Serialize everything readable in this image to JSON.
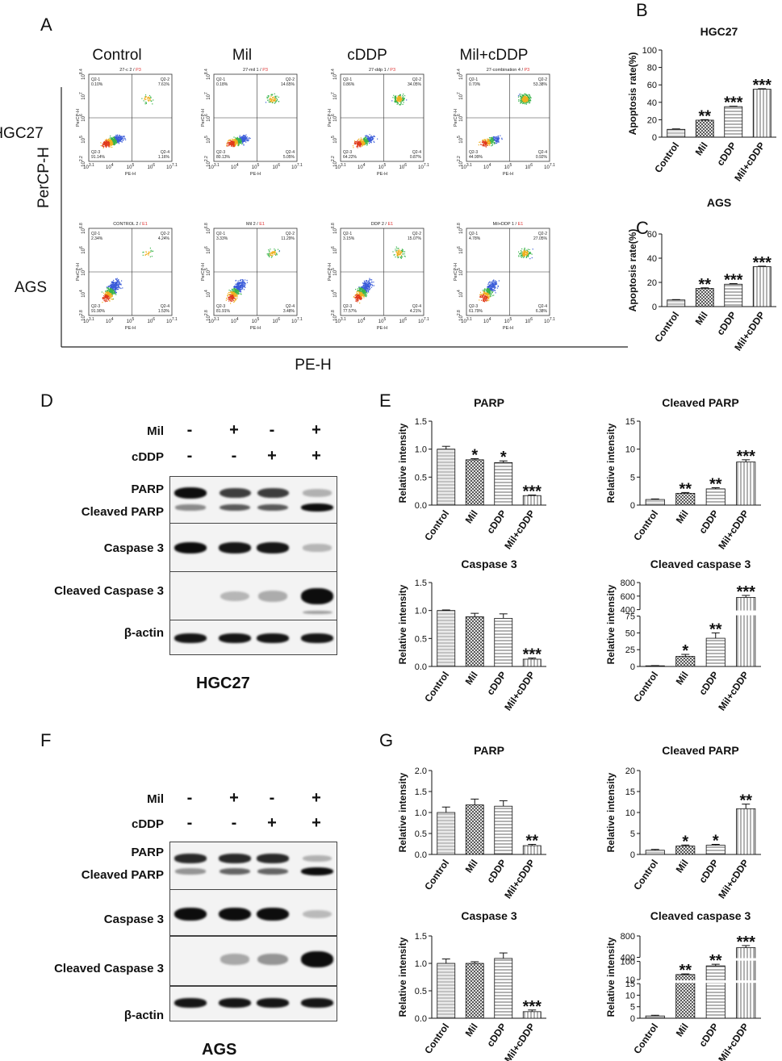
{
  "panels": {
    "A": "A",
    "B": "B",
    "C": "C",
    "D": "D",
    "E": "E",
    "F": "F",
    "G": "G"
  },
  "flow": {
    "conditions": [
      "Control",
      "Mil",
      "cDDP",
      "Mil+cDDP"
    ],
    "rows": [
      "HGC27",
      "AGS"
    ],
    "y_axis": "PerCP-H",
    "x_axis": "PE-H",
    "plot_titles": [
      [
        "27-c 2 / P3",
        "27-mil 1 / P3",
        "27-ddp 1 / P3",
        "27-combination 4 / P3"
      ],
      [
        "CONTROL 2 / E1",
        "Mil 2 / E1",
        "DDP 2 / E1",
        "Mil+DDP 1 / E1"
      ]
    ],
    "quadrants": [
      [
        {
          "q1": "Q2-1\n0.10%",
          "q2": "Q2-2\n7.61%",
          "q3": "Q2-3\n91.14%",
          "q4": "Q2-4\n1.16%"
        },
        {
          "q1": "Q2-1\n0.18%",
          "q2": "Q2-2\n14.65%",
          "q3": "Q2-3\n80.13%",
          "q4": "Q2-4\n5.05%"
        },
        {
          "q1": "Q2-1\n0.86%",
          "q2": "Q2-2\n34.05%",
          "q3": "Q2-3\n64.22%",
          "q4": "Q2-4\n0.87%"
        },
        {
          "q1": "Q2-1\n0.70%",
          "q2": "Q2-2\n53.38%",
          "q3": "Q2-3\n44.99%",
          "q4": "Q2-4\n0.92%"
        }
      ],
      [
        {
          "q1": "Q2-1\n2.34%",
          "q2": "Q2-2\n4.24%",
          "q3": "Q2-3\n91.90%",
          "q4": "Q2-4\n1.53%"
        },
        {
          "q1": "Q2-1\n3.33%",
          "q2": "Q2-2\n11.29%",
          "q3": "Q2-3\n81.91%",
          "q4": "Q2-4\n3.48%"
        },
        {
          "q1": "Q2-1\n3.15%",
          "q2": "Q2-2\n15.07%",
          "q3": "Q2-3\n77.57%",
          "q4": "Q2-4\n4.21%"
        },
        {
          "q1": "Q2-1\n4.78%",
          "q2": "Q2-2\n27.05%",
          "q3": "Q2-3\n61.79%",
          "q4": "Q2-4\n6.38%"
        }
      ]
    ],
    "x_ticks": [
      "10^3.1",
      "10^4",
      "10^5",
      "10^6",
      "10^7.1"
    ],
    "y_ticks_hgc": [
      "10^2.2",
      "10^5",
      "10^6",
      "10^7",
      "10^8.4"
    ],
    "y_ticks_ags": [
      "10^2.8",
      "10^4",
      "10^5",
      "10^6",
      "10^6.8"
    ]
  },
  "blots": [
    {
      "cell": "HGC27",
      "treatments": [
        {
          "name": "Mil",
          "signs": [
            "-",
            "+",
            "-",
            "+"
          ]
        },
        {
          "name": "cDDP",
          "signs": [
            "-",
            "-",
            "+",
            "+"
          ]
        }
      ],
      "bands": [
        "PARP",
        "Cleaved PARP",
        "Caspase 3",
        "Cleaved Caspase 3",
        "β-actin"
      ]
    },
    {
      "cell": "AGS",
      "treatments": [
        {
          "name": "Mil",
          "signs": [
            "-",
            "+",
            "-",
            "+"
          ]
        },
        {
          "name": "cDDP",
          "signs": [
            "-",
            "-",
            "+",
            "+"
          ]
        }
      ],
      "bands": [
        "PARP",
        "Cleaved PARP",
        "Caspase 3",
        "Cleaved Caspase 3",
        "β-actin"
      ]
    }
  ],
  "chart_data": [
    {
      "id": "B",
      "type": "bar",
      "title": "HGC27",
      "ylabel": "Apoptosis rate(%)",
      "categories": [
        "Control",
        "Mil",
        "cDDP",
        "Mil+cDDP"
      ],
      "values": [
        9,
        19.5,
        35,
        55
      ],
      "errors": [
        0.5,
        0.6,
        0.5,
        0.6
      ],
      "sig": [
        "",
        "**",
        "***",
        "***"
      ],
      "ylim": [
        0,
        100
      ],
      "yticks": [
        0,
        20,
        40,
        60,
        80,
        100
      ]
    },
    {
      "id": "C",
      "type": "bar",
      "title": "AGS",
      "ylabel": "Apoptosis rate(%)",
      "categories": [
        "Control",
        "Mil",
        "cDDP",
        "Mil+cDDP"
      ],
      "values": [
        5.5,
        15,
        18.5,
        33
      ],
      "errors": [
        0.3,
        0.5,
        0.5,
        0.4
      ],
      "sig": [
        "",
        "**",
        "***",
        "***"
      ],
      "ylim": [
        0,
        60
      ],
      "yticks": [
        0,
        20,
        40,
        60
      ]
    },
    {
      "id": "E1",
      "type": "bar",
      "title": "PARP",
      "ylabel": "Relative intensity",
      "categories": [
        "Control",
        "Mil",
        "cDDP",
        "Mil+cDDP"
      ],
      "values": [
        1.0,
        0.81,
        0.76,
        0.17
      ],
      "errors": [
        0.05,
        0.02,
        0.03,
        0.01
      ],
      "sig": [
        "",
        "*",
        "*",
        "***"
      ],
      "ylim": [
        0,
        1.5
      ],
      "yticks": [
        0.0,
        0.5,
        1.0,
        1.5
      ]
    },
    {
      "id": "E2",
      "type": "bar",
      "title": "Cleaved PARP",
      "ylabel": "Relative intensity",
      "categories": [
        "Control",
        "Mil",
        "cDDP",
        "Mil+cDDP"
      ],
      "values": [
        1.0,
        2.1,
        2.9,
        7.7
      ],
      "errors": [
        0.1,
        0.15,
        0.2,
        0.4
      ],
      "sig": [
        "",
        "**",
        "**",
        "***"
      ],
      "ylim": [
        0,
        15
      ],
      "yticks": [
        0,
        5,
        10,
        15
      ]
    },
    {
      "id": "E3",
      "type": "bar",
      "title": "Caspase 3",
      "ylabel": "Relative intensity",
      "categories": [
        "Control",
        "Mil",
        "cDDP",
        "Mil+cDDP"
      ],
      "values": [
        1.0,
        0.89,
        0.86,
        0.13
      ],
      "errors": [
        0.01,
        0.06,
        0.08,
        0.02
      ],
      "sig": [
        "",
        "",
        "",
        "***"
      ],
      "ylim": [
        0,
        1.5
      ],
      "yticks": [
        0.0,
        0.5,
        1.0,
        1.5
      ]
    },
    {
      "id": "E4",
      "type": "bar",
      "title": "Cleaved caspase 3",
      "ylabel": "Relative intensity",
      "categories": [
        "Control",
        "Mil",
        "cDDP",
        "Mil+cDDP"
      ],
      "values": [
        1,
        15,
        42,
        580
      ],
      "errors": [
        0.3,
        3,
        8,
        30
      ],
      "sig": [
        "",
        "*",
        "**",
        "***"
      ],
      "broken": true,
      "lower_ylim": [
        0,
        75
      ],
      "lower_ticks": [
        0,
        25,
        50,
        75
      ],
      "upper_ylim": [
        400,
        800
      ],
      "upper_ticks": [
        400,
        600,
        800
      ]
    },
    {
      "id": "G1",
      "type": "bar",
      "title": "PARP",
      "ylabel": "Relative intensity",
      "categories": [
        "Control",
        "Mil",
        "cDDP",
        "Mil+cDDP"
      ],
      "values": [
        1.0,
        1.18,
        1.15,
        0.21
      ],
      "errors": [
        0.13,
        0.14,
        0.13,
        0.03
      ],
      "sig": [
        "",
        "",
        "",
        "**"
      ],
      "ylim": [
        0,
        2.0
      ],
      "yticks": [
        0.0,
        0.5,
        1.0,
        1.5,
        2.0
      ]
    },
    {
      "id": "G2",
      "type": "bar",
      "title": "Cleaved PARP",
      "ylabel": "Relative intensity",
      "categories": [
        "Control",
        "Mil",
        "cDDP",
        "Mil+cDDP"
      ],
      "values": [
        1.0,
        2.0,
        2.2,
        10.9
      ],
      "errors": [
        0.2,
        0.25,
        0.2,
        1.1
      ],
      "sig": [
        "",
        "*",
        "*",
        "**"
      ],
      "ylim": [
        0,
        20
      ],
      "yticks": [
        0,
        5,
        10,
        15,
        20
      ]
    },
    {
      "id": "G3",
      "type": "bar",
      "title": "Caspase 3",
      "ylabel": "Relative intensity",
      "categories": [
        "Control",
        "Mil",
        "cDDP",
        "Mil+cDDP"
      ],
      "values": [
        1.0,
        1.0,
        1.09,
        0.12
      ],
      "errors": [
        0.08,
        0.03,
        0.1,
        0.03
      ],
      "sig": [
        "",
        "",
        "",
        "***"
      ],
      "ylim": [
        0,
        1.5
      ],
      "yticks": [
        0.0,
        0.5,
        1.0,
        1.5
      ]
    },
    {
      "id": "G4",
      "type": "bar",
      "title": "Cleaved caspase 3",
      "ylabel": "Relative intensity",
      "categories": [
        "Control",
        "Mil",
        "cDDP",
        "Mil+cDDP"
      ],
      "values": [
        1,
        35,
        78,
        580
      ],
      "errors": [
        0.3,
        3,
        8,
        40
      ],
      "sig": [
        "",
        "**",
        "**",
        "***"
      ],
      "broken3": true,
      "seg_bottom": [
        0,
        15
      ],
      "ticks_bottom": [
        0,
        5,
        10,
        15
      ],
      "seg_middle": [
        10,
        100
      ],
      "ticks_middle": [
        10,
        100
      ],
      "seg_top": [
        400,
        800
      ],
      "ticks_top": [
        400,
        800
      ]
    }
  ]
}
